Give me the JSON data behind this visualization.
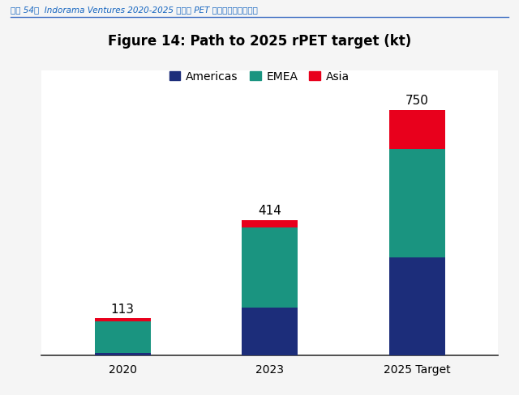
{
  "title": "Figure 14: Path to 2025 rPET target (kt)",
  "subtitle": "图表 54：  Indorama Ventures 2020-2025 年再生 PET 产能规划（分地区）",
  "categories": [
    "2020",
    "2023",
    "2025 Target"
  ],
  "totals": [
    113,
    414,
    750
  ],
  "americas": [
    8,
    145,
    300
  ],
  "emea": [
    95,
    245,
    330
  ],
  "asia": [
    10,
    24,
    120
  ],
  "colors": {
    "americas": "#1c2d7a",
    "emea": "#1a9480",
    "asia": "#e8001c"
  },
  "legend_labels": [
    "Americas",
    "EMEA",
    "Asia"
  ],
  "bar_width": 0.38,
  "ylim": [
    0,
    870
  ],
  "background_color": "#ffffff",
  "title_fontsize": 12,
  "label_fontsize": 11,
  "tick_fontsize": 10,
  "legend_fontsize": 10,
  "outer_bg": "#f5f5f5"
}
